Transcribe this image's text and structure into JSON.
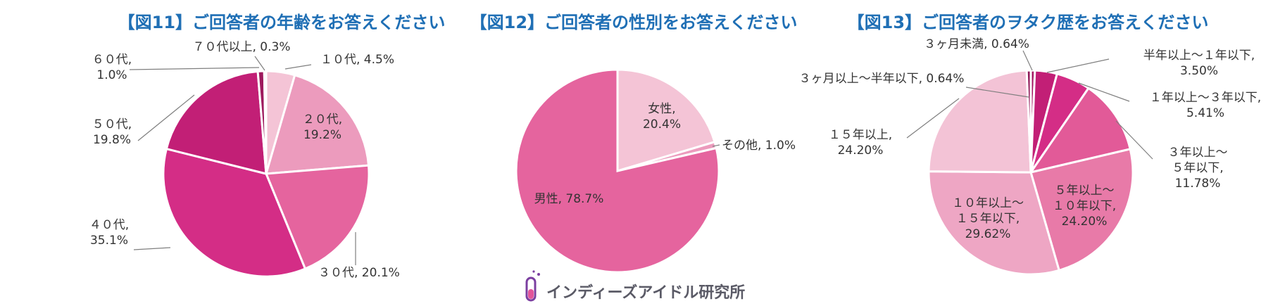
{
  "chart_data": [
    {
      "type": "pie",
      "title": "【図11】ご回答者の年齢をお答えください",
      "slices": [
        {
          "label": "１０代",
          "value": 4.5,
          "display": "4.5%",
          "color": "#f4c4d6"
        },
        {
          "label": "２０代",
          "value": 19.2,
          "display": "19.2%",
          "color": "#ec9bbd"
        },
        {
          "label": "３０代",
          "value": 20.1,
          "display": "20.1%",
          "color": "#e5649e"
        },
        {
          "label": "４０代",
          "value": 35.1,
          "display": "35.1%",
          "color": "#d42d86"
        },
        {
          "label": "５０代",
          "value": 19.8,
          "display": "19.8%",
          "color": "#c21f76"
        },
        {
          "label": "６０代",
          "value": 1.0,
          "display": "1.0%",
          "color": "#9e1a5e"
        },
        {
          "label": "７０代以上",
          "value": 0.3,
          "display": "0.3%",
          "color": "#7a1448"
        }
      ]
    },
    {
      "type": "pie",
      "title": "【図12】ご回答者の性別をお答えください",
      "slices": [
        {
          "label": "女性",
          "value": 20.4,
          "display": "20.4%",
          "color": "#f4c4d6"
        },
        {
          "label": "その他",
          "value": 1.0,
          "display": "1.0%",
          "color": "#ec9bbd"
        },
        {
          "label": "男性",
          "value": 78.7,
          "display": "78.7%",
          "color": "#e5649e"
        }
      ]
    },
    {
      "type": "pie",
      "title": "【図13】ご回答者のヲタク歴をお答えください",
      "slices": [
        {
          "label": "３ヶ月未満",
          "value": 0.64,
          "display": "0.64%",
          "color": "#a31862"
        },
        {
          "label": "半年以上～１年以下",
          "value": 3.5,
          "display": "3.50%",
          "color": "#c21f76"
        },
        {
          "label": "１年以上～３年以下",
          "value": 5.41,
          "display": "5.41%",
          "color": "#d42d86"
        },
        {
          "label": "３年以上～５年以下",
          "value": 11.78,
          "display": "11.78%",
          "color": "#e25a98"
        },
        {
          "label": "５年以上～１０年以下",
          "value": 24.2,
          "display": "24.20%",
          "color": "#e87aa8"
        },
        {
          "label": "１０年以上～１５年以下",
          "value": 29.62,
          "display": "29.62%",
          "color": "#eea6c4"
        },
        {
          "label": "１５年以上",
          "value": 24.2,
          "display": "24.20%",
          "color": "#f3c3d6"
        },
        {
          "label": "３ヶ月以上～半年以下",
          "value": 0.64,
          "display": "0.64%",
          "color": "#8e1656"
        }
      ]
    }
  ],
  "logo": {
    "text": "インディーズアイドル研究所",
    "icon": "test-tube-icon"
  }
}
